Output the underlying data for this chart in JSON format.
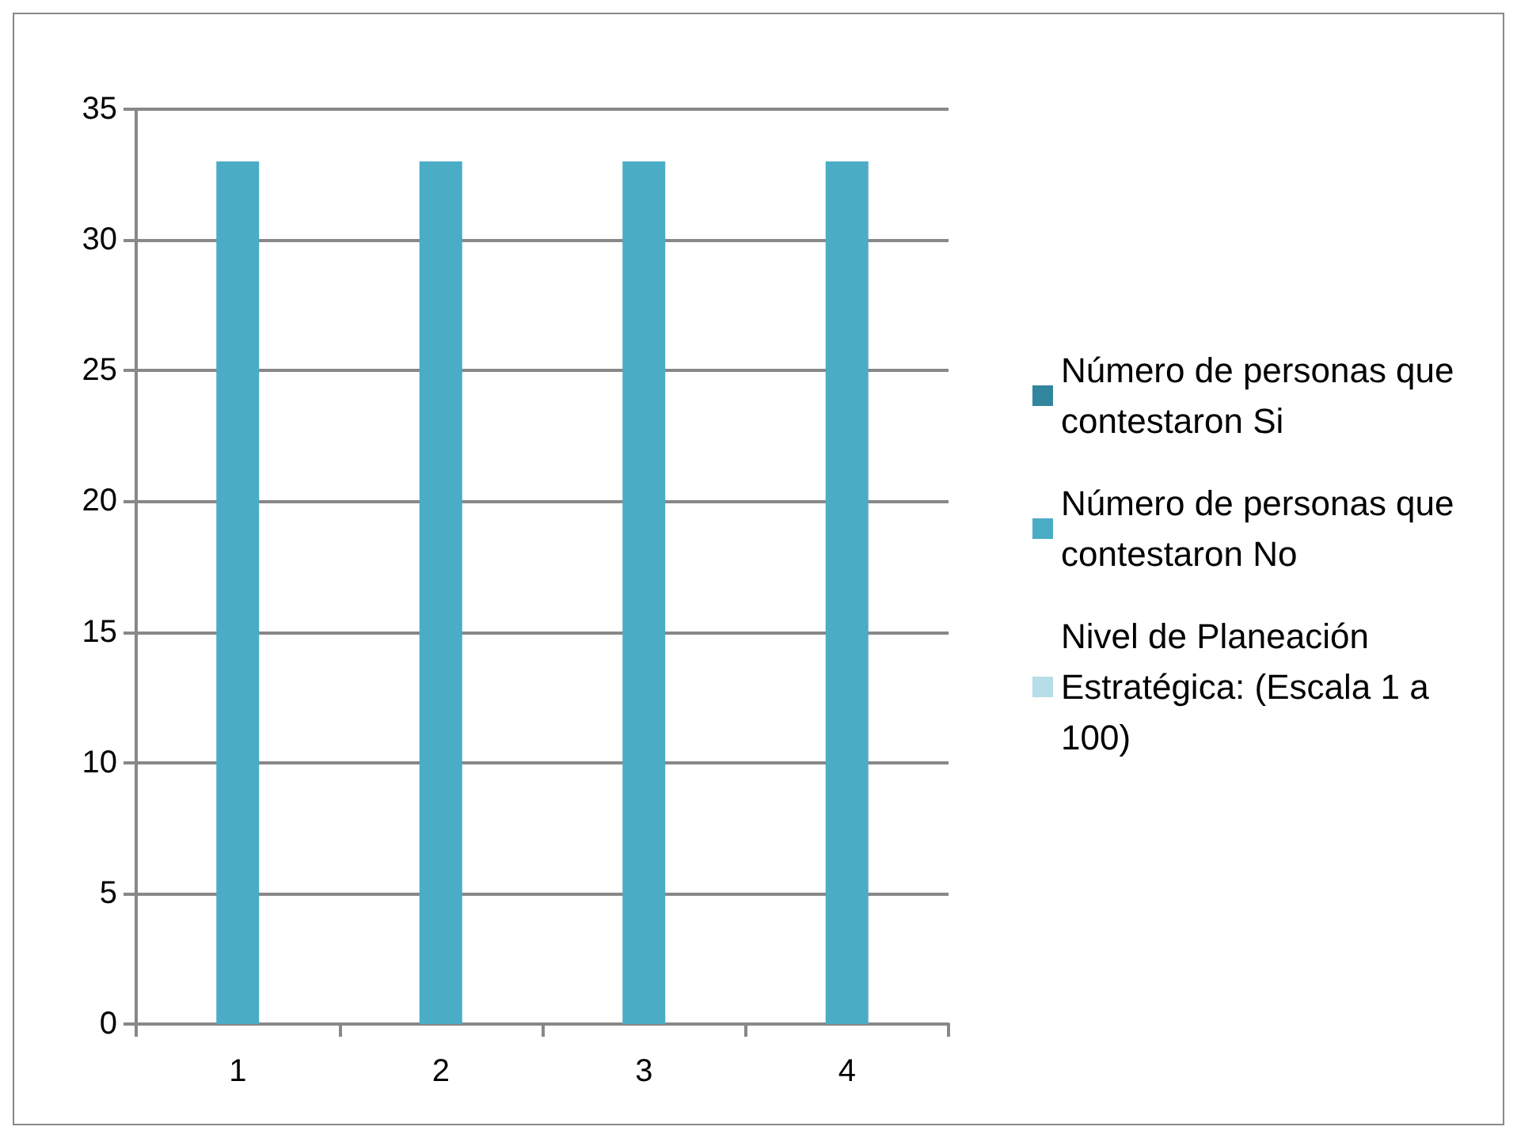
{
  "chart_data": {
    "type": "bar",
    "categories": [
      "1",
      "2",
      "3",
      "4"
    ],
    "series": [
      {
        "name": "Número de personas que contestaron Si",
        "color": "#31859c",
        "values": [
          0,
          0,
          0,
          0
        ]
      },
      {
        "name": "Número de personas que contestaron No",
        "color": "#4bacc6",
        "values": [
          33,
          33,
          33,
          33
        ]
      },
      {
        "name": "Nivel de Planeación Estratégica: (Escala 1 a 100)",
        "color": "#b7dde8",
        "values": [
          0,
          0,
          0,
          0
        ]
      }
    ],
    "ylim": [
      0,
      35
    ],
    "yticks": [
      0,
      5,
      10,
      15,
      20,
      25,
      30,
      35
    ],
    "grid": "y",
    "legend": "right"
  }
}
